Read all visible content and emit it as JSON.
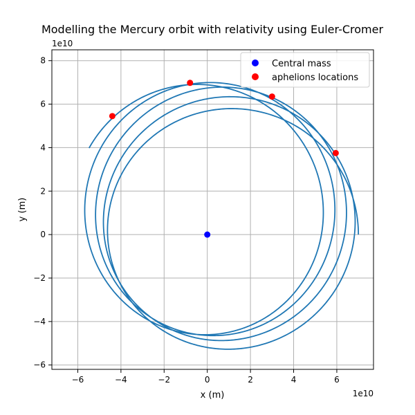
{
  "chart_data": {
    "type": "line",
    "title": "Modelling the Mercury orbit with relativity using Euler-Cromer",
    "xlabel": "x (m)",
    "ylabel": "y (m)",
    "x_offset_label": "1e10",
    "y_offset_label": "1e10",
    "xlim": [
      -7.2,
      7.7
    ],
    "ylim": [
      -6.2,
      8.5
    ],
    "x_ticks": [
      -6,
      -4,
      -2,
      0,
      2,
      4,
      6
    ],
    "y_ticks": [
      -6,
      -4,
      -2,
      0,
      2,
      4,
      6,
      8
    ],
    "x_tick_labels": [
      "−6",
      "−4",
      "−2",
      "0",
      "2",
      "4",
      "6"
    ],
    "y_tick_labels": [
      "−6",
      "−4",
      "−2",
      "0",
      "2",
      "4",
      "6",
      "8"
    ],
    "grid": true,
    "legend_position": "top-right",
    "units_note": "axis values in units of 1e10 m",
    "colors": {
      "orbit": "#1f77b4",
      "central_mass": "#0000ff",
      "aphelions": "#ff0000",
      "grid": "#b0b0b0"
    },
    "orbit": {
      "perihelion": 4.6,
      "aphelion": 7.0,
      "start_angle_deg": 0,
      "precession_deg_per_orbit": 26,
      "orbits": 4.4
    },
    "series": [
      {
        "name": "Central mass",
        "kind": "scatter",
        "points": [
          [
            0,
            0
          ]
        ]
      },
      {
        "name": "aphelions locations",
        "kind": "scatter",
        "points": [
          [
            -4.4,
            5.45
          ],
          [
            -0.8,
            6.98
          ],
          [
            3.0,
            6.35
          ],
          [
            5.95,
            3.75
          ]
        ]
      }
    ]
  }
}
